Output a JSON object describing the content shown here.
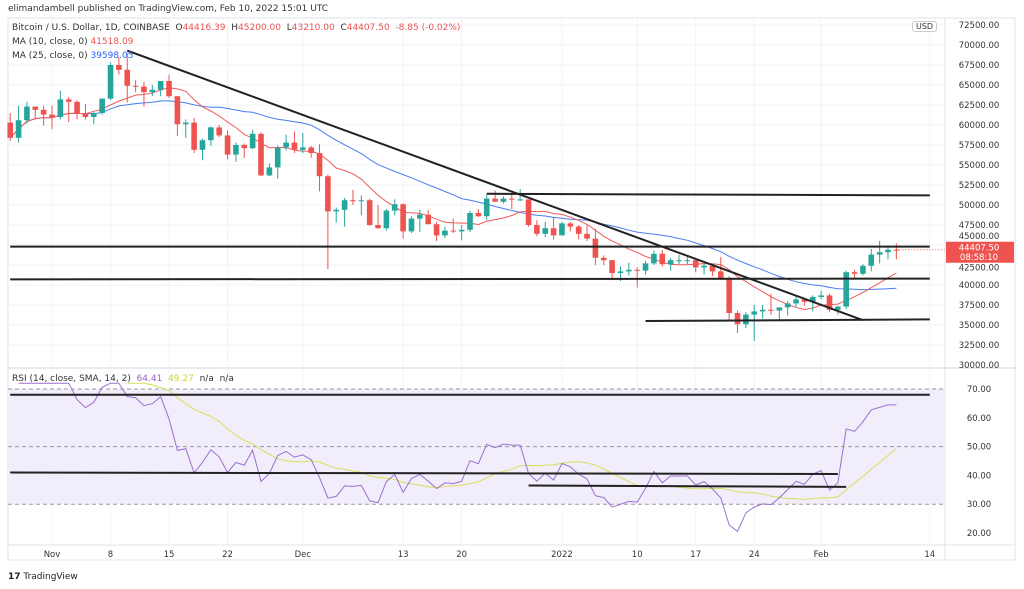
{
  "header": {
    "publisher": "elimandambell published on TradingView.com, Feb 10, 2022 15:01 UTC"
  },
  "legend": {
    "symbol": "Bitcoin / U.S. Dollar, 1D, COINBASE",
    "o_label": "O",
    "o": "44416.39",
    "h_label": "H",
    "h": "45200.00",
    "l_label": "L",
    "l": "43210.00",
    "c_label": "C",
    "c": "44407.50",
    "change": "-8.85 (-0.02%)",
    "ma10_label": "MA (10, close, 0)",
    "ma10": "41518.09",
    "ma25_label": "MA (25, close, 0)",
    "ma25": "39598.05"
  },
  "rsi_legend": {
    "label": "RSI (14, close, SMA, 14, 2)",
    "rsi": "64.41",
    "sma": "49.27",
    "na1": "n/a",
    "na2": "n/a"
  },
  "price_tag": {
    "price": "44407.50",
    "countdown": "08:58:10"
  },
  "currency": "USD",
  "footer": {
    "brand": "TradingView"
  },
  "colors": {
    "up": "#26a69a",
    "down": "#ef5350",
    "ma10": "#f05a5a",
    "ma25": "#4a7cf0",
    "rsi": "#9c6fd0",
    "rsi_sma": "#d7df5a",
    "trendline": "#222222",
    "rsi_band": "#f2edfa"
  },
  "chart_data": {
    "type": "candlestick",
    "title": "Bitcoin / U.S. Dollar, 1D, COINBASE",
    "ylim": [
      30000,
      72500
    ],
    "y_ticks": [
      "72500.00",
      "70000.00",
      "67500.00",
      "65000.00",
      "62500.00",
      "60000.00",
      "57500.00",
      "55000.00",
      "52500.00",
      "50000.00",
      "47500.00",
      "45000.00",
      "42500.00",
      "40000.00",
      "37500.00",
      "35000.00",
      "32500.00",
      "30000.00"
    ],
    "x_ticks": [
      {
        "label": "Nov",
        "date": "2021-11-01"
      },
      {
        "label": "8",
        "date": "2021-11-08"
      },
      {
        "label": "15",
        "date": "2021-11-15"
      },
      {
        "label": "22",
        "date": "2021-11-22"
      },
      {
        "label": "Dec",
        "date": "2021-12-01"
      },
      {
        "label": "13",
        "date": "2021-12-13"
      },
      {
        "label": "20",
        "date": "2021-12-20"
      },
      {
        "label": "2022",
        "date": "2022-01-01"
      },
      {
        "label": "10",
        "date": "2022-01-10"
      },
      {
        "label": "17",
        "date": "2022-01-17"
      },
      {
        "label": "24",
        "date": "2022-01-24"
      },
      {
        "label": "Feb",
        "date": "2022-02-01"
      },
      {
        "label": "14",
        "date": "2022-02-14"
      }
    ],
    "candles_columns": [
      "date",
      "open",
      "high",
      "low",
      "close"
    ],
    "candles": [
      [
        "2021-10-27",
        60300,
        61500,
        58000,
        58400
      ],
      [
        "2021-10-28",
        58400,
        62400,
        57800,
        60600
      ],
      [
        "2021-10-29",
        60600,
        62900,
        60200,
        62300
      ],
      [
        "2021-10-30",
        62300,
        62300,
        60700,
        61900
      ],
      [
        "2021-10-31",
        61900,
        62400,
        59900,
        61300
      ],
      [
        "2021-11-01",
        61300,
        62400,
        59500,
        61000
      ],
      [
        "2021-11-02",
        61000,
        64300,
        60700,
        63200
      ],
      [
        "2021-11-03",
        63200,
        63500,
        60400,
        62900
      ],
      [
        "2021-11-04",
        62900,
        63100,
        60700,
        61400
      ],
      [
        "2021-11-05",
        61400,
        62600,
        60700,
        61000
      ],
      [
        "2021-11-06",
        61000,
        61600,
        60100,
        61500
      ],
      [
        "2021-11-07",
        61500,
        63300,
        61300,
        63300
      ],
      [
        "2021-11-08",
        63300,
        67800,
        63100,
        67500
      ],
      [
        "2021-11-09",
        67500,
        68500,
        66300,
        66900
      ],
      [
        "2021-11-10",
        66900,
        69000,
        62800,
        64900
      ],
      [
        "2021-11-11",
        64900,
        65600,
        64100,
        64800
      ],
      [
        "2021-11-12",
        64800,
        65400,
        62300,
        64100
      ],
      [
        "2021-11-13",
        64100,
        65000,
        63600,
        64400
      ],
      [
        "2021-11-14",
        64400,
        65500,
        63600,
        65500
      ],
      [
        "2021-11-15",
        65500,
        66300,
        63400,
        63600
      ],
      [
        "2021-11-16",
        63600,
        63600,
        58600,
        60100
      ],
      [
        "2021-11-17",
        60100,
        60700,
        58400,
        60300
      ],
      [
        "2021-11-18",
        60300,
        60900,
        56500,
        56900
      ],
      [
        "2021-11-19",
        56900,
        58300,
        55600,
        58100
      ],
      [
        "2021-11-20",
        58100,
        59800,
        57400,
        59700
      ],
      [
        "2021-11-21",
        59700,
        60000,
        58500,
        58700
      ],
      [
        "2021-11-22",
        58700,
        59300,
        55700,
        56300
      ],
      [
        "2021-11-23",
        56300,
        57800,
        55400,
        57500
      ],
      [
        "2021-11-24",
        57500,
        57700,
        55900,
        57100
      ],
      [
        "2021-11-25",
        57100,
        59400,
        57000,
        58900
      ],
      [
        "2021-11-26",
        58900,
        59100,
        53600,
        53700
      ],
      [
        "2021-11-27",
        53700,
        55200,
        53600,
        54700
      ],
      [
        "2021-11-28",
        54700,
        57400,
        53300,
        57200
      ],
      [
        "2021-11-29",
        57200,
        58800,
        56800,
        57800
      ],
      [
        "2021-11-30",
        57800,
        59200,
        56500,
        56900
      ],
      [
        "2021-12-01",
        56900,
        59000,
        56500,
        57200
      ],
      [
        "2021-12-02",
        57200,
        57400,
        55900,
        56500
      ],
      [
        "2021-12-03",
        56500,
        57600,
        51700,
        53600
      ],
      [
        "2021-12-04",
        53600,
        53800,
        42000,
        49200
      ],
      [
        "2021-12-05",
        49200,
        49700,
        47800,
        49400
      ],
      [
        "2021-12-06",
        49400,
        50900,
        47300,
        50600
      ],
      [
        "2021-12-07",
        50600,
        51900,
        50000,
        50500
      ],
      [
        "2021-12-08",
        50500,
        51200,
        48700,
        50600
      ],
      [
        "2021-12-09",
        50600,
        50800,
        47400,
        47500
      ],
      [
        "2021-12-10",
        47500,
        50000,
        47000,
        47100
      ],
      [
        "2021-12-11",
        47100,
        49500,
        46800,
        49300
      ],
      [
        "2021-12-12",
        49300,
        50700,
        48700,
        50100
      ],
      [
        "2021-12-13",
        50100,
        50200,
        45800,
        46700
      ],
      [
        "2021-12-14",
        46700,
        48600,
        46500,
        48300
      ],
      [
        "2021-12-15",
        48300,
        49400,
        46600,
        48800
      ],
      [
        "2021-12-16",
        48800,
        49400,
        47600,
        47600
      ],
      [
        "2021-12-17",
        47600,
        47900,
        45500,
        46200
      ],
      [
        "2021-12-18",
        46200,
        47300,
        45900,
        46800
      ],
      [
        "2021-12-19",
        46800,
        48300,
        46500,
        46700
      ],
      [
        "2021-12-20",
        46700,
        47500,
        45600,
        46900
      ],
      [
        "2021-12-21",
        46900,
        49300,
        46600,
        49000
      ],
      [
        "2021-12-22",
        49000,
        49500,
        48500,
        48600
      ],
      [
        "2021-12-23",
        48600,
        51300,
        48100,
        50800
      ],
      [
        "2021-12-24",
        50800,
        51800,
        50400,
        50400
      ],
      [
        "2021-12-25",
        50400,
        51100,
        50200,
        50800
      ],
      [
        "2021-12-26",
        50800,
        51400,
        49500,
        50700
      ],
      [
        "2021-12-27",
        50700,
        52000,
        50500,
        50700
      ],
      [
        "2021-12-28",
        50700,
        50700,
        47300,
        47500
      ],
      [
        "2021-12-29",
        47500,
        48100,
        46100,
        46400
      ],
      [
        "2021-12-30",
        46400,
        47900,
        46000,
        47100
      ],
      [
        "2021-12-31",
        47100,
        48500,
        45700,
        46200
      ],
      [
        "2022-01-01",
        46200,
        47900,
        46200,
        47700
      ],
      [
        "2022-01-02",
        47700,
        47900,
        46700,
        47300
      ],
      [
        "2022-01-03",
        47300,
        47500,
        45700,
        46400
      ],
      [
        "2022-01-04",
        46400,
        47500,
        45500,
        45800
      ],
      [
        "2022-01-05",
        45800,
        47000,
        42500,
        43400
      ],
      [
        "2022-01-06",
        43400,
        43700,
        42500,
        43100
      ],
      [
        "2022-01-07",
        43100,
        43100,
        40600,
        41500
      ],
      [
        "2022-01-08",
        41500,
        42300,
        40500,
        41700
      ],
      [
        "2022-01-09",
        41700,
        42800,
        41200,
        41900
      ],
      [
        "2022-01-10",
        41900,
        42200,
        39700,
        41800
      ],
      [
        "2022-01-11",
        41800,
        43000,
        41300,
        42700
      ],
      [
        "2022-01-12",
        42700,
        44300,
        42500,
        43900
      ],
      [
        "2022-01-13",
        43900,
        44400,
        42300,
        42600
      ],
      [
        "2022-01-14",
        42600,
        43400,
        41800,
        43100
      ],
      [
        "2022-01-15",
        43100,
        43800,
        42600,
        43100
      ],
      [
        "2022-01-16",
        43100,
        43500,
        42600,
        43100
      ],
      [
        "2022-01-17",
        43100,
        43200,
        41600,
        42200
      ],
      [
        "2022-01-18",
        42200,
        42700,
        41300,
        42400
      ],
      [
        "2022-01-19",
        42400,
        42600,
        41100,
        41700
      ],
      [
        "2022-01-20",
        41700,
        43500,
        40600,
        40700
      ],
      [
        "2022-01-21",
        40700,
        41100,
        35500,
        36500
      ],
      [
        "2022-01-22",
        36500,
        36800,
        34000,
        35100
      ],
      [
        "2022-01-23",
        35100,
        36600,
        34600,
        36300
      ],
      [
        "2022-01-24",
        36300,
        37500,
        33000,
        36700
      ],
      [
        "2022-01-25",
        36700,
        37500,
        35800,
        36900
      ],
      [
        "2022-01-26",
        36900,
        38900,
        36300,
        36800
      ],
      [
        "2022-01-27",
        36800,
        37200,
        35600,
        37200
      ],
      [
        "2022-01-28",
        37200,
        38000,
        36200,
        37700
      ],
      [
        "2022-01-29",
        37700,
        38700,
        37300,
        38200
      ],
      [
        "2022-01-30",
        38200,
        38300,
        37400,
        37900
      ],
      [
        "2022-01-31",
        37900,
        38700,
        36700,
        38500
      ],
      [
        "2022-02-01",
        38500,
        39300,
        38200,
        38700
      ],
      [
        "2022-02-02",
        38700,
        38900,
        36600,
        36900
      ],
      [
        "2022-02-03",
        36900,
        37400,
        36300,
        37300
      ],
      [
        "2022-02-04",
        37300,
        41800,
        37000,
        41600
      ],
      [
        "2022-02-05",
        41600,
        41900,
        40900,
        41400
      ],
      [
        "2022-02-06",
        41400,
        42600,
        41200,
        42400
      ],
      [
        "2022-02-07",
        42400,
        44500,
        41700,
        43800
      ],
      [
        "2022-02-08",
        43800,
        45500,
        42700,
        44100
      ],
      [
        "2022-02-09",
        44100,
        44800,
        43200,
        44400
      ],
      [
        "2022-02-10",
        44416.39,
        45200,
        43210,
        44407.5
      ]
    ],
    "indicators": [
      "MA (10, close, 0)",
      "MA (25, close, 0)"
    ],
    "trendlines": [
      {
        "from": [
          "2021-11-10",
          69300
        ],
        "to": [
          "2022-02-06",
          35600
        ]
      },
      {
        "from": [
          "2021-12-23",
          51400
        ],
        "to": [
          "2022-02-14",
          51200
        ]
      },
      {
        "from": [
          "2021-10-27",
          44800
        ],
        "to": [
          "2022-02-14",
          44800
        ]
      },
      {
        "from": [
          "2021-10-27",
          40700
        ],
        "to": [
          "2022-02-14",
          40800
        ]
      },
      {
        "from": [
          "2022-01-11",
          35500
        ],
        "to": [
          "2022-02-14",
          35700
        ]
      }
    ],
    "rsi": {
      "ylim": [
        15,
        72
      ],
      "y_ticks": [
        "70.00",
        "60.00",
        "50.00",
        "40.00",
        "30.00",
        "20.00"
      ],
      "band": [
        30,
        70
      ],
      "trendlines": [
        {
          "from": [
            "2021-10-27",
            68
          ],
          "to": [
            "2022-02-14",
            68
          ]
        },
        {
          "from": [
            "2021-10-27",
            41
          ],
          "to": [
            "2022-02-03",
            40.5
          ]
        },
        {
          "from": [
            "2021-12-28",
            36.5
          ],
          "to": [
            "2022-02-04",
            36
          ]
        }
      ]
    }
  }
}
